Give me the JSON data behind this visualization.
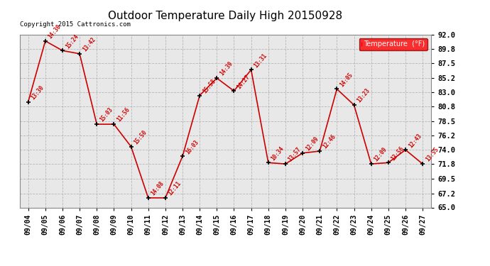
{
  "title": "Outdoor Temperature Daily High 20150928",
  "copyright": "Copyright 2015 Cattronics.com",
  "legend_label": "Temperature  (°F)",
  "dates": [
    "09/04",
    "09/05",
    "09/06",
    "09/07",
    "09/08",
    "09/09",
    "09/10",
    "09/11",
    "09/12",
    "09/13",
    "09/14",
    "09/15",
    "09/16",
    "09/17",
    "09/18",
    "09/19",
    "09/20",
    "09/21",
    "09/22",
    "09/23",
    "09/24",
    "09/25",
    "09/26",
    "09/27"
  ],
  "times": [
    "13:30",
    "14:30",
    "15:24",
    "13:42",
    "15:03",
    "11:56",
    "15:50",
    "14:08",
    "12:11",
    "16:03",
    "15:58",
    "14:39",
    "14:27",
    "13:31",
    "10:34",
    "13:57",
    "12:09",
    "12:46",
    "14:05",
    "13:23",
    "12:09",
    "13:56",
    "12:43",
    "13:55"
  ],
  "temps": [
    81.5,
    91.0,
    89.5,
    89.0,
    78.0,
    78.0,
    74.5,
    66.5,
    66.5,
    73.0,
    82.5,
    85.2,
    83.2,
    86.5,
    72.0,
    71.8,
    73.5,
    73.8,
    83.5,
    81.0,
    71.8,
    72.0,
    74.0,
    71.8
  ],
  "line_color": "#cc0000",
  "marker_color": "#000000",
  "bg_color": "#ffffff",
  "plot_bg_color": "#e8e8e8",
  "grid_color": "#aaaaaa",
  "ylim_min": 65.0,
  "ylim_max": 92.0,
  "yticks": [
    65.0,
    67.2,
    69.5,
    71.8,
    74.0,
    76.2,
    78.5,
    80.8,
    83.0,
    85.2,
    87.5,
    89.8,
    92.0
  ]
}
